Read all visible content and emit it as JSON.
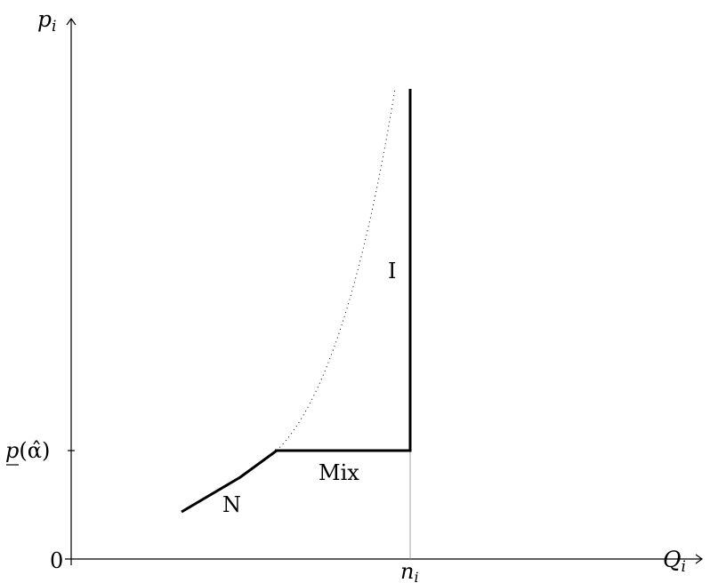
{
  "axes": {
    "y_label_base": "p",
    "y_label_sub": "i",
    "x_label_base": "Q",
    "x_label_sub": "i",
    "origin_label": "0",
    "x_tick_base": "n",
    "x_tick_sub": "i",
    "y_tick_label": "p(α̂)",
    "y_tick_base": "p",
    "y_tick_arg": "(α̂)"
  },
  "regions": {
    "n_label": "N",
    "mix_label": "Mix",
    "i_label": "I"
  },
  "colors": {
    "curve": "#000000",
    "axis": "#000000",
    "guide": "#9a9a9a"
  }
}
